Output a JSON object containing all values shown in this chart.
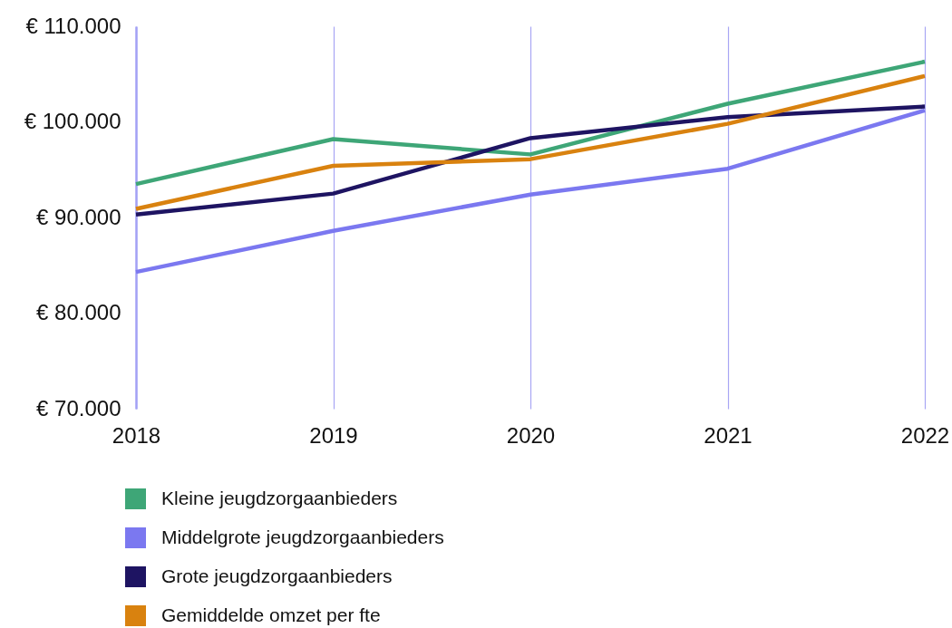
{
  "chart_data": {
    "type": "line",
    "categories": [
      "2018",
      "2019",
      "2020",
      "2021",
      "2022"
    ],
    "series": [
      {
        "name": "Kleine jeugdzorgaanbieders",
        "color": "#3ea677",
        "values": [
          93500,
          98200,
          96600,
          101900,
          106300
        ]
      },
      {
        "name": "Middelgrote jeugdzorgaanbieders",
        "color": "#7b78f0",
        "values": [
          84300,
          88600,
          92400,
          95100,
          101200
        ]
      },
      {
        "name": "Grote jeugdzorgaanbieders",
        "color": "#1e1462",
        "values": [
          90300,
          92500,
          98300,
          100500,
          101600
        ]
      },
      {
        "name": "Gemiddelde omzet per fte",
        "color": "#d9820f",
        "values": [
          90900,
          95400,
          96100,
          99800,
          104800
        ]
      }
    ],
    "ylim": [
      70000,
      110000
    ],
    "yticks": [
      {
        "value": 70000,
        "label": "€ 70.000"
      },
      {
        "value": 80000,
        "label": "€ 80.000"
      },
      {
        "value": 90000,
        "label": "€ 90.000"
      },
      {
        "value": 100000,
        "label": "€ 100.000"
      },
      {
        "value": 110000,
        "label": "€ 110.000"
      }
    ],
    "grid": "x",
    "legend": "bottom",
    "line_style": "solid"
  }
}
